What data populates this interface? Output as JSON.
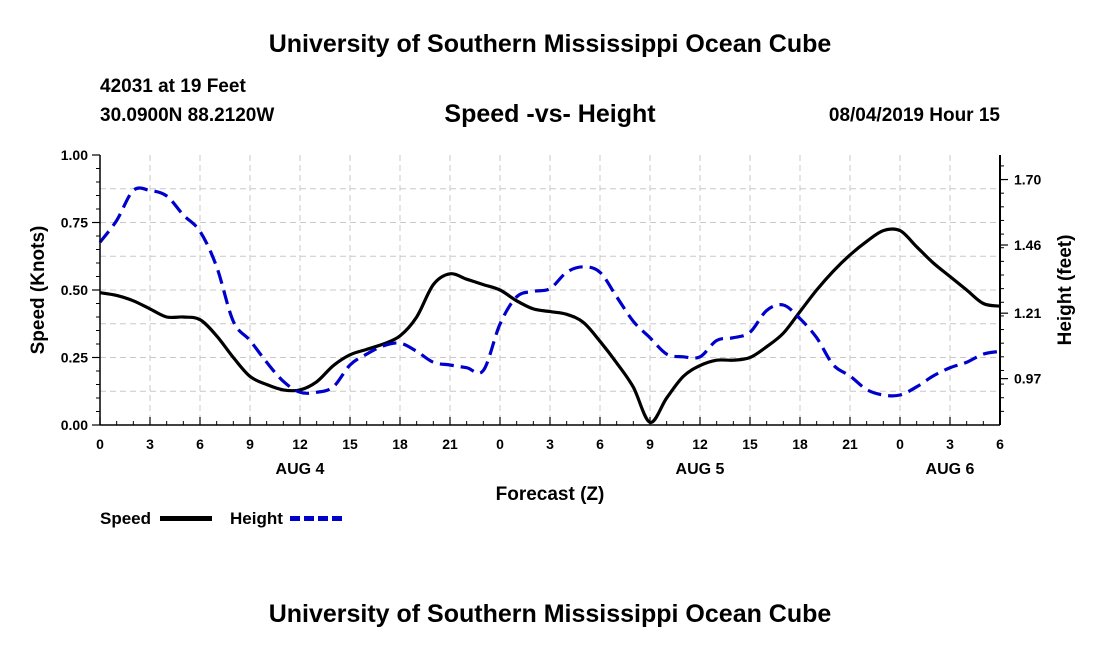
{
  "page": {
    "title_top": "University of Southern Mississippi Ocean Cube",
    "title_bottom": "University of Southern Mississippi Ocean Cube",
    "station": "42031 at 19 Feet",
    "coords": "30.0900N 88.2120W",
    "timestamp": "08/04/2019 Hour 15"
  },
  "legend": {
    "speed_label": "Speed",
    "height_label": "Height"
  },
  "colors": {
    "speed": "#000000",
    "height": "#0000cc",
    "grid": "#c8c8c8"
  },
  "chart_data": {
    "type": "line",
    "title": "Speed -vs- Height",
    "xlabel": "Forecast (Z)",
    "ylabel": "Speed (Knots)",
    "y2label": "Height (feet)",
    "xlim": [
      0,
      54
    ],
    "ylim": [
      0,
      1.0
    ],
    "y2lim": [
      0.8,
      1.79
    ],
    "x_ticks": [
      0,
      3,
      6,
      9,
      12,
      15,
      18,
      21,
      24,
      27,
      30,
      33,
      36,
      39,
      42,
      45,
      48,
      51,
      54
    ],
    "x_tick_labels": [
      "0",
      "3",
      "6",
      "9",
      "12",
      "15",
      "18",
      "21",
      "0",
      "3",
      "6",
      "9",
      "12",
      "15",
      "18",
      "21",
      "0",
      "3",
      "6"
    ],
    "date_labels": [
      {
        "x": 12,
        "label": "AUG 4"
      },
      {
        "x": 36,
        "label": "AUG 5"
      },
      {
        "x": 51,
        "label": "AUG 6"
      }
    ],
    "y_ticks": [
      0.0,
      0.25,
      0.5,
      0.75,
      1.0
    ],
    "y_tick_labels": [
      "0.00",
      "0.25",
      "0.50",
      "0.75",
      "1.00"
    ],
    "y2_ticks": [
      0.97,
      1.21,
      1.46,
      1.7
    ],
    "y2_tick_labels": [
      "0.97",
      "1.21",
      "1.46",
      "1.70"
    ],
    "grid": true,
    "series": [
      {
        "name": "Speed",
        "axis": "left",
        "style": "solid",
        "x": [
          0,
          1,
          2,
          3,
          4,
          5,
          6,
          7,
          8,
          9,
          10,
          11,
          12,
          13,
          14,
          15,
          16,
          17,
          18,
          19,
          20,
          21,
          22,
          23,
          24,
          25,
          26,
          27,
          28,
          29,
          30,
          31,
          32,
          33,
          34,
          35,
          36,
          37,
          38,
          39,
          40,
          41,
          42,
          43,
          44,
          45,
          46,
          47,
          48,
          49,
          50,
          51,
          52,
          53,
          54
        ],
        "values": [
          0.49,
          0.48,
          0.46,
          0.43,
          0.4,
          0.4,
          0.39,
          0.33,
          0.25,
          0.18,
          0.15,
          0.13,
          0.13,
          0.16,
          0.22,
          0.26,
          0.28,
          0.3,
          0.33,
          0.4,
          0.52,
          0.56,
          0.54,
          0.52,
          0.5,
          0.46,
          0.43,
          0.42,
          0.41,
          0.38,
          0.31,
          0.23,
          0.14,
          0.01,
          0.1,
          0.18,
          0.22,
          0.24,
          0.24,
          0.25,
          0.29,
          0.34,
          0.42,
          0.5,
          0.57,
          0.63,
          0.68,
          0.72,
          0.72,
          0.66,
          0.6,
          0.55,
          0.5,
          0.45,
          0.44
        ]
      },
      {
        "name": "Height",
        "axis": "right",
        "style": "dashed",
        "x": [
          0,
          1,
          2,
          3,
          4,
          5,
          6,
          7,
          8,
          9,
          10,
          11,
          12,
          13,
          14,
          15,
          16,
          17,
          18,
          19,
          20,
          21,
          22,
          23,
          24,
          25,
          26,
          27,
          28,
          29,
          30,
          31,
          32,
          33,
          34,
          35,
          36,
          37,
          38,
          39,
          40,
          41,
          42,
          43,
          44,
          45,
          46,
          47,
          48,
          49,
          50,
          51,
          52,
          53,
          54
        ],
        "values": [
          1.47,
          1.55,
          1.66,
          1.66,
          1.64,
          1.57,
          1.51,
          1.38,
          1.18,
          1.11,
          1.03,
          0.96,
          0.92,
          0.92,
          0.94,
          1.02,
          1.06,
          1.09,
          1.1,
          1.07,
          1.03,
          1.02,
          1.01,
          1.0,
          1.17,
          1.27,
          1.29,
          1.3,
          1.36,
          1.38,
          1.36,
          1.27,
          1.18,
          1.12,
          1.06,
          1.05,
          1.05,
          1.11,
          1.12,
          1.14,
          1.22,
          1.24,
          1.19,
          1.12,
          1.02,
          0.98,
          0.93,
          0.91,
          0.91,
          0.94,
          0.98,
          1.01,
          1.03,
          1.06,
          1.07
        ]
      }
    ]
  }
}
